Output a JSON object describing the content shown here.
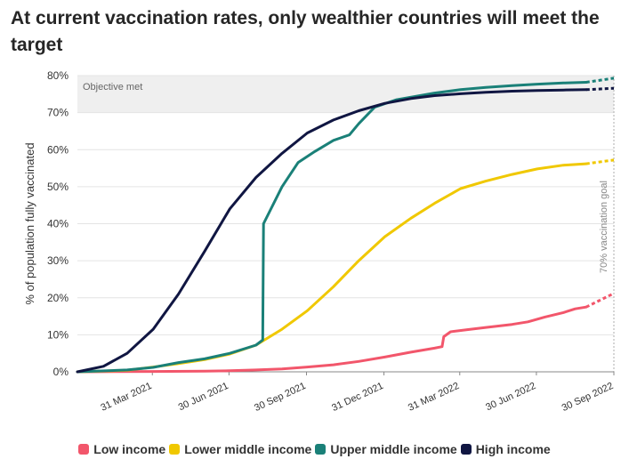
{
  "chart_data": {
    "type": "line",
    "title": "At current vaccination rates, only wealthier countries will meet the target",
    "ylabel": "% of population fully vaccinated",
    "xlabel": "",
    "ylim": [
      0,
      80
    ],
    "yticks": [
      0,
      10,
      20,
      30,
      40,
      50,
      60,
      70,
      80
    ],
    "ytick_labels": [
      "0%",
      "10%",
      "20%",
      "30%",
      "40%",
      "50%",
      "60%",
      "70%",
      "80%"
    ],
    "x_start": "2021-01-01",
    "x_end": "2022-09-30",
    "xticks": [
      "2021-03-31",
      "2021-06-30",
      "2021-09-30",
      "2021-12-31",
      "2022-03-31",
      "2022-06-30",
      "2022-09-30"
    ],
    "xtick_labels": [
      "31 Mar 2021",
      "30 Jun 2021",
      "30 Sep 2021",
      "31 Dec 2021",
      "31 Mar 2022",
      "30 Jun 2022",
      "30 Sep 2022"
    ],
    "grid": true,
    "legend_position": "bottom",
    "objective_band": {
      "from": 70,
      "to": 80,
      "label": "Objective met"
    },
    "goal_line": {
      "x": "2022-09-30",
      "label": "70% vaccination goal"
    },
    "series": [
      {
        "name": "Low income",
        "color": "#f2566b",
        "points": [
          [
            "2021-01-01",
            0
          ],
          [
            "2021-04-01",
            0.1
          ],
          [
            "2021-06-01",
            0.2
          ],
          [
            "2021-07-01",
            0.3
          ],
          [
            "2021-08-01",
            0.5
          ],
          [
            "2021-09-01",
            0.8
          ],
          [
            "2021-10-01",
            1.3
          ],
          [
            "2021-11-01",
            1.9
          ],
          [
            "2021-12-01",
            2.8
          ],
          [
            "2022-01-01",
            4
          ],
          [
            "2022-02-01",
            5.3
          ],
          [
            "2022-03-01",
            6.4
          ],
          [
            "2022-03-10",
            6.8
          ],
          [
            "2022-03-12",
            9.5
          ],
          [
            "2022-03-20",
            10.8
          ],
          [
            "2022-04-10",
            11.4
          ],
          [
            "2022-05-01",
            12
          ],
          [
            "2022-06-01",
            12.8
          ],
          [
            "2022-06-20",
            13.5
          ],
          [
            "2022-07-10",
            14.8
          ],
          [
            "2022-08-01",
            16
          ],
          [
            "2022-08-15",
            17
          ],
          [
            "2022-08-28",
            17.5
          ]
        ],
        "projection": [
          [
            "2022-08-28",
            17.5
          ],
          [
            "2022-09-30",
            21.2
          ]
        ]
      },
      {
        "name": "Lower middle income",
        "color": "#f0c800",
        "points": [
          [
            "2021-01-01",
            0
          ],
          [
            "2021-03-01",
            0.4
          ],
          [
            "2021-04-01",
            1.3
          ],
          [
            "2021-05-01",
            2.2
          ],
          [
            "2021-06-01",
            3.3
          ],
          [
            "2021-07-01",
            4.8
          ],
          [
            "2021-08-01",
            7.2
          ],
          [
            "2021-09-01",
            11.5
          ],
          [
            "2021-10-01",
            16.5
          ],
          [
            "2021-11-01",
            23
          ],
          [
            "2021-12-01",
            30
          ],
          [
            "2022-01-01",
            36.5
          ],
          [
            "2022-02-01",
            41.5
          ],
          [
            "2022-03-01",
            45.5
          ],
          [
            "2022-04-01",
            49.5
          ],
          [
            "2022-05-01",
            51.5
          ],
          [
            "2022-06-01",
            53.3
          ],
          [
            "2022-07-01",
            54.8
          ],
          [
            "2022-08-01",
            55.8
          ],
          [
            "2022-08-28",
            56.2
          ]
        ],
        "projection": [
          [
            "2022-08-28",
            56.2
          ],
          [
            "2022-09-30",
            57.2
          ]
        ]
      },
      {
        "name": "Upper middle income",
        "color": "#1a8078",
        "points": [
          [
            "2021-01-01",
            0
          ],
          [
            "2021-03-01",
            0.5
          ],
          [
            "2021-04-01",
            1.2
          ],
          [
            "2021-05-01",
            2.5
          ],
          [
            "2021-06-01",
            3.5
          ],
          [
            "2021-07-01",
            5
          ],
          [
            "2021-08-01",
            7.2
          ],
          [
            "2021-08-09",
            8.6
          ],
          [
            "2021-08-10",
            40
          ],
          [
            "2021-09-01",
            50
          ],
          [
            "2021-09-20",
            56.5
          ],
          [
            "2021-10-10",
            59.5
          ],
          [
            "2021-11-01",
            62.5
          ],
          [
            "2021-11-20",
            64
          ],
          [
            "2021-12-01",
            67
          ],
          [
            "2021-12-20",
            71.5
          ],
          [
            "2022-01-15",
            73.5
          ],
          [
            "2022-03-01",
            75.3
          ],
          [
            "2022-04-01",
            76.2
          ],
          [
            "2022-05-01",
            76.8
          ],
          [
            "2022-06-01",
            77.3
          ],
          [
            "2022-07-01",
            77.7
          ],
          [
            "2022-08-01",
            78
          ],
          [
            "2022-08-28",
            78.2
          ]
        ],
        "projection": [
          [
            "2022-08-28",
            78.2
          ],
          [
            "2022-09-30",
            79.3
          ]
        ]
      },
      {
        "name": "High income",
        "color": "#101642",
        "points": [
          [
            "2021-01-01",
            0
          ],
          [
            "2021-02-01",
            1.5
          ],
          [
            "2021-03-01",
            5
          ],
          [
            "2021-04-01",
            11.5
          ],
          [
            "2021-05-01",
            21
          ],
          [
            "2021-06-01",
            32.5
          ],
          [
            "2021-07-01",
            44
          ],
          [
            "2021-08-01",
            52.5
          ],
          [
            "2021-09-01",
            59
          ],
          [
            "2021-10-01",
            64.5
          ],
          [
            "2021-11-01",
            68
          ],
          [
            "2021-12-01",
            70.5
          ],
          [
            "2022-01-01",
            72.5
          ],
          [
            "2022-02-01",
            73.8
          ],
          [
            "2022-03-01",
            74.6
          ],
          [
            "2022-04-01",
            75.1
          ],
          [
            "2022-05-01",
            75.5
          ],
          [
            "2022-06-01",
            75.8
          ],
          [
            "2022-07-01",
            76
          ],
          [
            "2022-08-01",
            76.1
          ],
          [
            "2022-08-28",
            76.2
          ]
        ],
        "projection": [
          [
            "2022-08-28",
            76.2
          ],
          [
            "2022-09-30",
            76.6
          ]
        ]
      }
    ]
  }
}
